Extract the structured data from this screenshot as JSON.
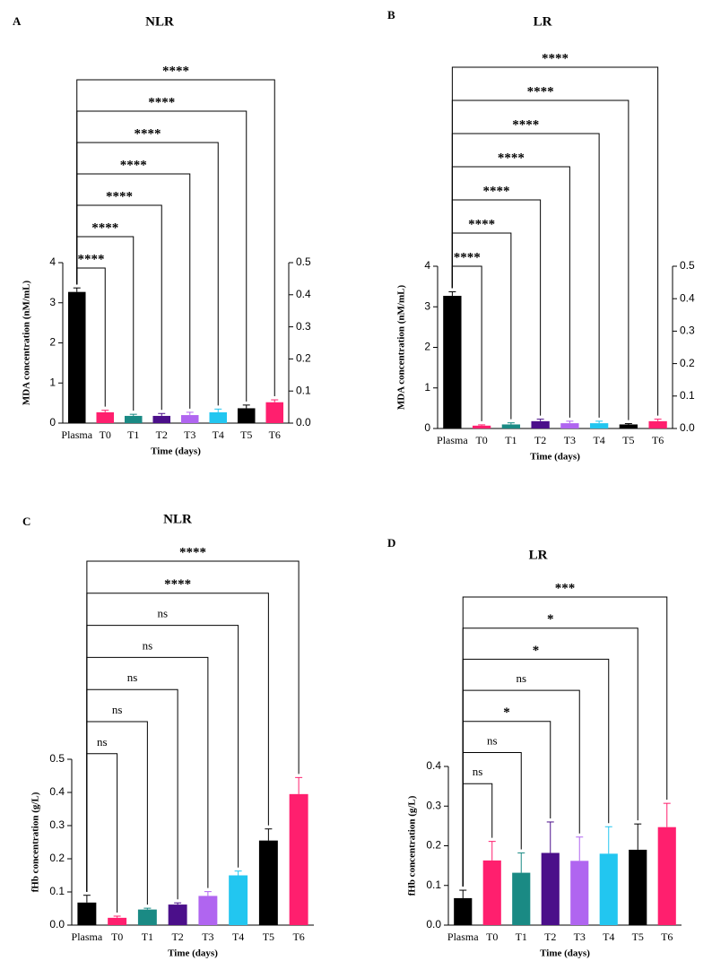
{
  "chart_data": [
    {
      "type": "bar",
      "panel": "A",
      "title": "NLR",
      "xlabel": "Time (days)",
      "ylabel": "MDA concentration (nM/mL)",
      "categories": [
        "Plasma",
        "T0",
        "T1",
        "T2",
        "T3",
        "T4",
        "T5",
        "T6"
      ],
      "values": [
        3.27,
        0.27,
        0.18,
        0.18,
        0.2,
        0.27,
        0.37,
        0.52
      ],
      "errors": [
        0.1,
        0.05,
        0.04,
        0.06,
        0.07,
        0.08,
        0.08,
        0.06
      ],
      "colors": [
        "#000000",
        "#ff1f6e",
        "#1a8a84",
        "#4b0f8a",
        "#b065f0",
        "#22c6f0",
        "#000000",
        "#ff1f6e"
      ],
      "ylim": [
        0,
        4
      ],
      "yticks": [
        0,
        1,
        2,
        3,
        4
      ],
      "y2lim": [
        0,
        0.5
      ],
      "y2ticks": [
        {
          "value": 0,
          "label": "0.0"
        },
        0.1,
        0.2,
        0.3,
        0.4,
        0.5
      ],
      "comparisons": [
        "****",
        "****",
        "****",
        "****",
        "****",
        "****",
        "****"
      ]
    },
    {
      "type": "bar",
      "panel": "B",
      "title": "LR",
      "xlabel": "Time (days)",
      "ylabel": "MDA concentration (nM/mL)",
      "categories": [
        "Plasma",
        "T0",
        "T1",
        "T2",
        "T3",
        "T4",
        "T5",
        "T6"
      ],
      "values": [
        3.27,
        0.07,
        0.1,
        0.18,
        0.13,
        0.13,
        0.1,
        0.18
      ],
      "errors": [
        0.1,
        0.02,
        0.04,
        0.05,
        0.05,
        0.05,
        0.02,
        0.05
      ],
      "colors": [
        "#000000",
        "#ff1f6e",
        "#1a8a84",
        "#4b0f8a",
        "#b065f0",
        "#22c6f0",
        "#000000",
        "#ff1f6e"
      ],
      "ylim": [
        0,
        4
      ],
      "yticks": [
        0,
        1,
        2,
        3,
        4
      ],
      "y2lim": [
        0,
        0.5
      ],
      "y2ticks": [
        {
          "value": 0,
          "label": "0.0"
        },
        0.1,
        0.2,
        0.3,
        0.4,
        0.5
      ],
      "comparisons": [
        "****",
        "****",
        "****",
        "****",
        "****",
        "****",
        "****"
      ]
    },
    {
      "type": "bar",
      "panel": "C",
      "title": "NLR",
      "xlabel": "Time (days)",
      "ylabel": "fHb concentration (g/L)",
      "categories": [
        "Plasma",
        "T0",
        "T1",
        "T2",
        "T3",
        "T4",
        "T5",
        "T6"
      ],
      "values": [
        0.068,
        0.022,
        0.047,
        0.062,
        0.088,
        0.15,
        0.255,
        0.395
      ],
      "errors": [
        0.022,
        0.005,
        0.004,
        0.005,
        0.013,
        0.013,
        0.035,
        0.05
      ],
      "colors": [
        "#000000",
        "#ff1f6e",
        "#1a8a84",
        "#4b0f8a",
        "#b065f0",
        "#22c6f0",
        "#000000",
        "#ff1f6e"
      ],
      "ylim": [
        0,
        0.5
      ],
      "yticks": [
        {
          "value": 0,
          "label": "0.0"
        },
        0.1,
        0.2,
        0.3,
        0.4,
        0.5
      ],
      "comparisons": [
        "ns",
        "ns",
        "ns",
        "ns",
        "ns",
        "****",
        "****"
      ]
    },
    {
      "type": "bar",
      "panel": "D",
      "title": "LR",
      "xlabel": "Time (days)",
      "ylabel": "fHb concentration (g/L)",
      "categories": [
        "Plasma",
        "T0",
        "T1",
        "T2",
        "T3",
        "T4",
        "T5",
        "T6"
      ],
      "values": [
        0.068,
        0.163,
        0.132,
        0.182,
        0.162,
        0.18,
        0.19,
        0.247
      ],
      "errors": [
        0.02,
        0.048,
        0.05,
        0.078,
        0.06,
        0.068,
        0.065,
        0.06
      ],
      "colors": [
        "#000000",
        "#ff1f6e",
        "#1a8a84",
        "#4b0f8a",
        "#b065f0",
        "#22c6f0",
        "#000000",
        "#ff1f6e"
      ],
      "ylim": [
        0,
        0.4
      ],
      "yticks": [
        {
          "value": 0,
          "label": "0.0"
        },
        0.1,
        0.2,
        0.3,
        0.4
      ],
      "comparisons": [
        "ns",
        "ns",
        "*",
        "ns",
        "*",
        "*",
        "***"
      ]
    }
  ]
}
